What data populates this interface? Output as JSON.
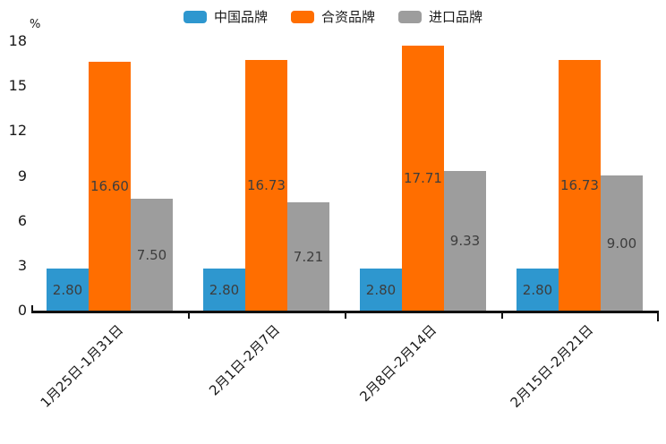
{
  "chart_data": {
    "type": "bar",
    "title": "",
    "unit_label": "%",
    "legend_position": "top",
    "grid": false,
    "categories": [
      "1月25日-1月31日",
      "2月1日-2月7日",
      "2月8日-2月14日",
      "2月15日-2月21日"
    ],
    "series": [
      {
        "name": "中国品牌",
        "color": "#2E97CF",
        "values": [
          2.8,
          2.8,
          2.8,
          2.8
        ],
        "labels": [
          "2.80",
          "2.80",
          "2.80",
          "2.80"
        ]
      },
      {
        "name": "合资品牌",
        "color": "#FF6E00",
        "values": [
          16.6,
          16.73,
          17.71,
          16.73
        ],
        "labels": [
          "16.60",
          "16.73",
          "17.71",
          "16.73"
        ]
      },
      {
        "name": "进口品牌",
        "color": "#9D9D9D",
        "values": [
          7.5,
          7.21,
          9.33,
          9.0
        ],
        "labels": [
          "7.50",
          "7.21",
          "9.33",
          "9.00"
        ]
      }
    ],
    "y_axis": {
      "min": 0,
      "max": 18,
      "tick_interval": 3,
      "ticks": [
        0,
        3,
        6,
        9,
        12,
        15,
        18
      ]
    },
    "colors": {
      "axis_line": "#111111",
      "bar_label_text": "#3d3d3d",
      "tick_label_text": "#1a1a1a",
      "background": "#ffffff"
    }
  }
}
